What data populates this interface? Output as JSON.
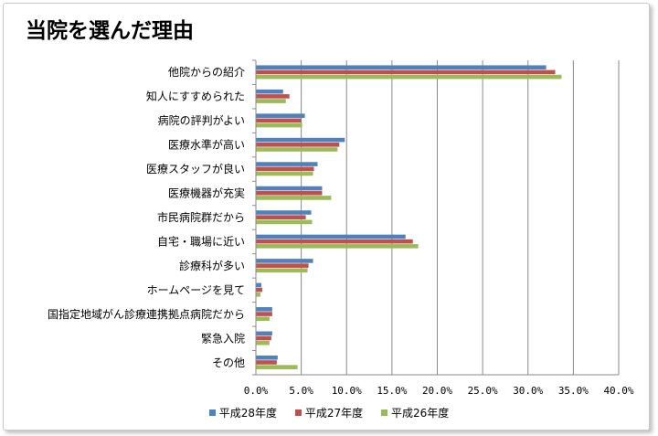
{
  "chart_data": {
    "type": "bar",
    "orientation": "horizontal",
    "title": "当院を選んだ理由",
    "categories": [
      "他院からの紹介",
      "知人にすすめられた",
      "病院の評判がよい",
      "医療水準が高い",
      "医療スタッフが良い",
      "医療機器が充実",
      "市民病院群だから",
      "自宅・職場に近い",
      "診療科が多い",
      "ホームページを見て",
      "国指定地域がん診療連携拠点病院だから",
      "緊急入院",
      "その他"
    ],
    "series": [
      {
        "name": "平成28年度",
        "color": "#4f81bd",
        "values": [
          32.0,
          3.0,
          5.4,
          9.8,
          6.8,
          7.3,
          6.1,
          16.5,
          6.3,
          0.6,
          1.8,
          1.8,
          2.4
        ]
      },
      {
        "name": "平成27年度",
        "color": "#c0504d",
        "values": [
          33.0,
          3.7,
          5.0,
          9.2,
          6.4,
          7.3,
          5.5,
          17.3,
          5.8,
          0.7,
          1.8,
          1.7,
          2.3
        ]
      },
      {
        "name": "平成26年度",
        "color": "#9bbb59",
        "values": [
          33.7,
          3.3,
          5.1,
          9.0,
          6.3,
          8.3,
          6.2,
          17.9,
          5.7,
          0.5,
          1.5,
          1.5,
          4.6
        ]
      }
    ],
    "xlim": [
      0,
      40
    ],
    "x_ticks": [
      "0.0%",
      "5.0%",
      "10.0%",
      "15.0%",
      "20.0%",
      "25.0%",
      "30.0%",
      "35.0%",
      "40.0%"
    ],
    "grid": true,
    "legend_position": "bottom"
  }
}
